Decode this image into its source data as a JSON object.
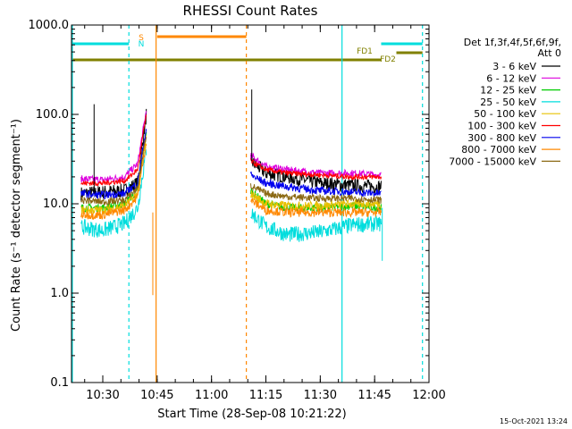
{
  "chart_data": {
    "type": "line",
    "title": "RHESSI Count Rates",
    "xlabel": "Start Time (28-Sep-08 10:21:22)",
    "ylabel": "Count Rate (s⁻¹ detector segment⁻¹)",
    "yscale": "log",
    "ylim": [
      0.1,
      1000
    ],
    "xlim": [
      "10:21:22",
      "12:00:00"
    ],
    "x_ticks": [
      "10:30",
      "10:45",
      "11:00",
      "11:15",
      "11:30",
      "11:45",
      "12:00"
    ],
    "y_ticks": [
      "0.1",
      "1.0",
      "10.0",
      "100.0",
      "1000.0"
    ],
    "legend_header": [
      "Det 1f,3f,4f,5f,6f,9f,",
      "Att 0"
    ],
    "legend_position": "right",
    "series": [
      {
        "name": "3 - 6 keV",
        "color": "#000000",
        "pre": [
          [
            10.4,
            13.0
          ],
          [
            10.5,
            13.5
          ],
          [
            10.6,
            14.0
          ],
          [
            10.66,
            17.0
          ],
          [
            10.7,
            100.0
          ]
        ],
        "post": [
          [
            11.18,
            30.0
          ],
          [
            11.25,
            22.0
          ],
          [
            11.35,
            20.0
          ],
          [
            11.5,
            17.0
          ],
          [
            11.65,
            16.0
          ],
          [
            11.78,
            15.5
          ]
        ]
      },
      {
        "name": "6 - 12 keV",
        "color": "#dd00dd",
        "pre": [
          [
            10.4,
            19.0
          ],
          [
            10.5,
            18.5
          ],
          [
            10.6,
            20.0
          ],
          [
            10.66,
            28.0
          ],
          [
            10.7,
            110.0
          ]
        ],
        "post": [
          [
            11.18,
            35.0
          ],
          [
            11.25,
            26.0
          ],
          [
            11.35,
            24.0
          ],
          [
            11.5,
            22.0
          ],
          [
            11.65,
            22.0
          ],
          [
            11.78,
            21.0
          ]
        ]
      },
      {
        "name": "12 - 25 keV",
        "color": "#00cc00",
        "pre": [
          [
            10.4,
            9.0
          ],
          [
            10.5,
            9.0
          ],
          [
            10.6,
            10.0
          ],
          [
            10.66,
            14.0
          ],
          [
            10.7,
            60.0
          ]
        ],
        "post": [
          [
            11.18,
            14.0
          ],
          [
            11.25,
            10.0
          ],
          [
            11.35,
            9.0
          ],
          [
            11.5,
            9.0
          ],
          [
            11.65,
            9.5
          ],
          [
            11.78,
            9.0
          ]
        ]
      },
      {
        "name": "25 - 50 keV",
        "color": "#00dddd",
        "pre": [
          [
            10.4,
            5.5
          ],
          [
            10.5,
            5.0
          ],
          [
            10.6,
            6.0
          ],
          [
            10.66,
            9.0
          ],
          [
            10.7,
            40.0
          ]
        ],
        "post": [
          [
            11.18,
            8.0
          ],
          [
            11.25,
            5.5
          ],
          [
            11.35,
            4.5
          ],
          [
            11.5,
            4.8
          ],
          [
            11.65,
            5.8
          ],
          [
            11.78,
            6.0
          ]
        ]
      },
      {
        "name": "50 - 100 keV",
        "color": "#e8c000",
        "pre": [
          [
            10.4,
            8.5
          ],
          [
            10.5,
            8.5
          ],
          [
            10.6,
            9.5
          ],
          [
            10.66,
            13.0
          ],
          [
            10.7,
            55.0
          ]
        ],
        "post": [
          [
            11.18,
            13.0
          ],
          [
            11.25,
            10.0
          ],
          [
            11.35,
            9.5
          ],
          [
            11.5,
            9.5
          ],
          [
            11.65,
            10.0
          ],
          [
            11.78,
            10.0
          ]
        ]
      },
      {
        "name": "100 - 300 keV",
        "color": "#ff0000",
        "pre": [
          [
            10.4,
            17.0
          ],
          [
            10.5,
            17.0
          ],
          [
            10.6,
            18.0
          ],
          [
            10.66,
            24.0
          ],
          [
            10.7,
            100.0
          ]
        ],
        "post": [
          [
            11.18,
            30.0
          ],
          [
            11.25,
            24.0
          ],
          [
            11.35,
            22.0
          ],
          [
            11.5,
            21.0
          ],
          [
            11.65,
            20.0
          ],
          [
            11.78,
            20.0
          ]
        ]
      },
      {
        "name": "300 - 800 keV",
        "color": "#0000ee",
        "pre": [
          [
            10.4,
            13.0
          ],
          [
            10.5,
            12.5
          ],
          [
            10.6,
            13.0
          ],
          [
            10.66,
            17.0
          ],
          [
            10.7,
            70.0
          ]
        ],
        "post": [
          [
            11.18,
            21.0
          ],
          [
            11.25,
            17.0
          ],
          [
            11.35,
            15.5
          ],
          [
            11.5,
            14.0
          ],
          [
            11.65,
            13.5
          ],
          [
            11.78,
            13.0
          ]
        ]
      },
      {
        "name": "800 - 7000 keV",
        "color": "#ff8800",
        "pre": [
          [
            10.4,
            7.5
          ],
          [
            10.5,
            7.5
          ],
          [
            10.6,
            8.5
          ],
          [
            10.66,
            12.0
          ],
          [
            10.7,
            50.0
          ]
        ],
        "post": [
          [
            11.18,
            11.0
          ],
          [
            11.25,
            8.5
          ],
          [
            11.35,
            8.0
          ],
          [
            11.5,
            8.0
          ],
          [
            11.65,
            8.0
          ],
          [
            11.78,
            8.0
          ]
        ]
      },
      {
        "name": "7000 - 15000 keV",
        "color": "#8b6914",
        "pre": [
          [
            10.4,
            11.0
          ],
          [
            10.5,
            10.5
          ],
          [
            10.6,
            11.0
          ],
          [
            10.66,
            15.0
          ],
          [
            10.7,
            60.0
          ]
        ],
        "post": [
          [
            11.18,
            16.0
          ],
          [
            11.25,
            13.0
          ],
          [
            11.35,
            12.0
          ],
          [
            11.5,
            11.5
          ],
          [
            11.65,
            11.5
          ],
          [
            11.78,
            11.0
          ]
        ]
      }
    ],
    "flags": [
      {
        "label": "S",
        "color": "#ff8800"
      },
      {
        "label": "N",
        "color": "#00dddd"
      },
      {
        "label": "FD1",
        "color": "#808000"
      },
      {
        "label": "FD2",
        "color": "#808000"
      }
    ]
  },
  "footer": {
    "timestamp": "15-Oct-2021 13:24"
  }
}
